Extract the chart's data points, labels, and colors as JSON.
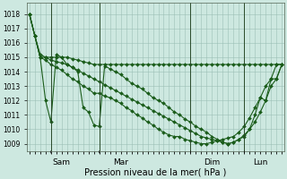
{
  "bg_color": "#cde8e0",
  "grid_color": "#9bbfb5",
  "line_color": "#1a5c1a",
  "xlabel": "Pression niveau de la mer( hPa )",
  "ylim": [
    1008.5,
    1018.8
  ],
  "yticks": [
    1009,
    1010,
    1011,
    1012,
    1013,
    1014,
    1015,
    1016,
    1017,
    1018
  ],
  "day_labels": [
    "Sam",
    "Mar",
    "Dim",
    "Lun"
  ],
  "num_points": 48,
  "line1_x": [
    0,
    1,
    2,
    3,
    4,
    5,
    6,
    7,
    8,
    9,
    10,
    11,
    12,
    13,
    14,
    15,
    16,
    17,
    18,
    19,
    20,
    21,
    22,
    23,
    24,
    25,
    26,
    27,
    28,
    29,
    30,
    31,
    32,
    33,
    34,
    35,
    36,
    37,
    38,
    39,
    40,
    41,
    42,
    43,
    44,
    45,
    46,
    47
  ],
  "line1_y": [
    1018,
    1016.5,
    1015.2,
    1015.0,
    1015.0,
    1015.0,
    1015.0,
    1015.0,
    1014.9,
    1014.8,
    1014.7,
    1014.6,
    1014.5,
    1014.5,
    1014.5,
    1014.5,
    1014.5,
    1014.5,
    1014.5,
    1014.5,
    1014.5,
    1014.5,
    1014.5,
    1014.5,
    1014.5,
    1014.5,
    1014.5,
    1014.5,
    1014.5,
    1014.5,
    1014.5,
    1014.5,
    1014.5,
    1014.5,
    1014.5,
    1014.5,
    1014.5,
    1014.5,
    1014.5,
    1014.5,
    1014.5,
    1014.5,
    1014.5,
    1014.5,
    1014.5,
    1014.5,
    1014.5,
    1014.5
  ],
  "line2_x": [
    0,
    1,
    2,
    3,
    4,
    5,
    6,
    7,
    8,
    9,
    10,
    11,
    12,
    13,
    14,
    15,
    16,
    17,
    18,
    19,
    20,
    21,
    22,
    23,
    24,
    25,
    26,
    27,
    28,
    29,
    30,
    31,
    32,
    33,
    34,
    35,
    36,
    37,
    38,
    39,
    40,
    41,
    42,
    43,
    44,
    45,
    46,
    47
  ],
  "line2_y": [
    1018,
    1016.5,
    1015.0,
    1015.0,
    1014.8,
    1014.7,
    1014.6,
    1014.5,
    1014.3,
    1014.1,
    1013.9,
    1013.7,
    1013.5,
    1013.3,
    1013.1,
    1012.9,
    1012.7,
    1012.5,
    1012.3,
    1012.1,
    1011.9,
    1011.7,
    1011.5,
    1011.3,
    1011.1,
    1010.9,
    1010.7,
    1010.5,
    1010.3,
    1010.1,
    1009.9,
    1009.7,
    1009.5,
    1009.4,
    1009.3,
    1009.2,
    1009.1,
    1009.0,
    1009.1,
    1009.3,
    1009.6,
    1010.0,
    1010.5,
    1011.2,
    1012.0,
    1013.0,
    1013.5,
    1014.5
  ],
  "line3_x": [
    0,
    1,
    2,
    3,
    4,
    5,
    6,
    7,
    8,
    9,
    10,
    11,
    12,
    13,
    14,
    15,
    16,
    17,
    18,
    19,
    20,
    21,
    22,
    23,
    24,
    25,
    26,
    27,
    28,
    29,
    30,
    31,
    32,
    33,
    34,
    35,
    36,
    37,
    38,
    39,
    40,
    41,
    42,
    43,
    44,
    45,
    46,
    47
  ],
  "line3_y": [
    1018,
    1016.5,
    1015.0,
    1014.8,
    1014.5,
    1014.3,
    1014.1,
    1013.8,
    1013.5,
    1013.3,
    1013.0,
    1012.8,
    1012.5,
    1012.5,
    1012.3,
    1012.2,
    1012.0,
    1011.8,
    1011.5,
    1011.3,
    1011.0,
    1010.8,
    1010.5,
    1010.3,
    1010.0,
    1009.8,
    1009.6,
    1009.5,
    1009.5,
    1009.3,
    1009.2,
    1009.1,
    1009.0,
    1009.0,
    1009.1,
    1009.2,
    1009.3,
    1009.4,
    1009.5,
    1009.8,
    1010.2,
    1010.8,
    1011.5,
    1012.2,
    1013.0,
    1013.5,
    1013.5,
    1014.5
  ],
  "line4_x": [
    0,
    1,
    2,
    3,
    4,
    5,
    6,
    7,
    8,
    9,
    10,
    11,
    12,
    13,
    14,
    15,
    16,
    17,
    18,
    19,
    20,
    21,
    22,
    23,
    24,
    25,
    26,
    27,
    28,
    29,
    30,
    31,
    32,
    33,
    34,
    35,
    36,
    37,
    38,
    39,
    40,
    41,
    42,
    43,
    44,
    45,
    46,
    47
  ],
  "line4_y": [
    1018,
    1016.5,
    1015.0,
    1012.0,
    1010.5,
    1015.2,
    1015.0,
    1014.5,
    1014.3,
    1014.0,
    1011.5,
    1011.2,
    1010.3,
    1010.2,
    1014.4,
    1014.2,
    1014.0,
    1013.8,
    1013.5,
    1013.2,
    1013.0,
    1012.8,
    1012.5,
    1012.2,
    1012.0,
    1011.8,
    1011.5,
    1011.2,
    1011.0,
    1010.7,
    1010.5,
    1010.2,
    1010.0,
    1009.8,
    1009.5,
    1009.3,
    1009.1,
    1009.0,
    1009.1,
    1009.3,
    1009.5,
    1010.0,
    1011.0,
    1012.2,
    1012.0,
    1013.5,
    1014.5,
    1014.5
  ]
}
